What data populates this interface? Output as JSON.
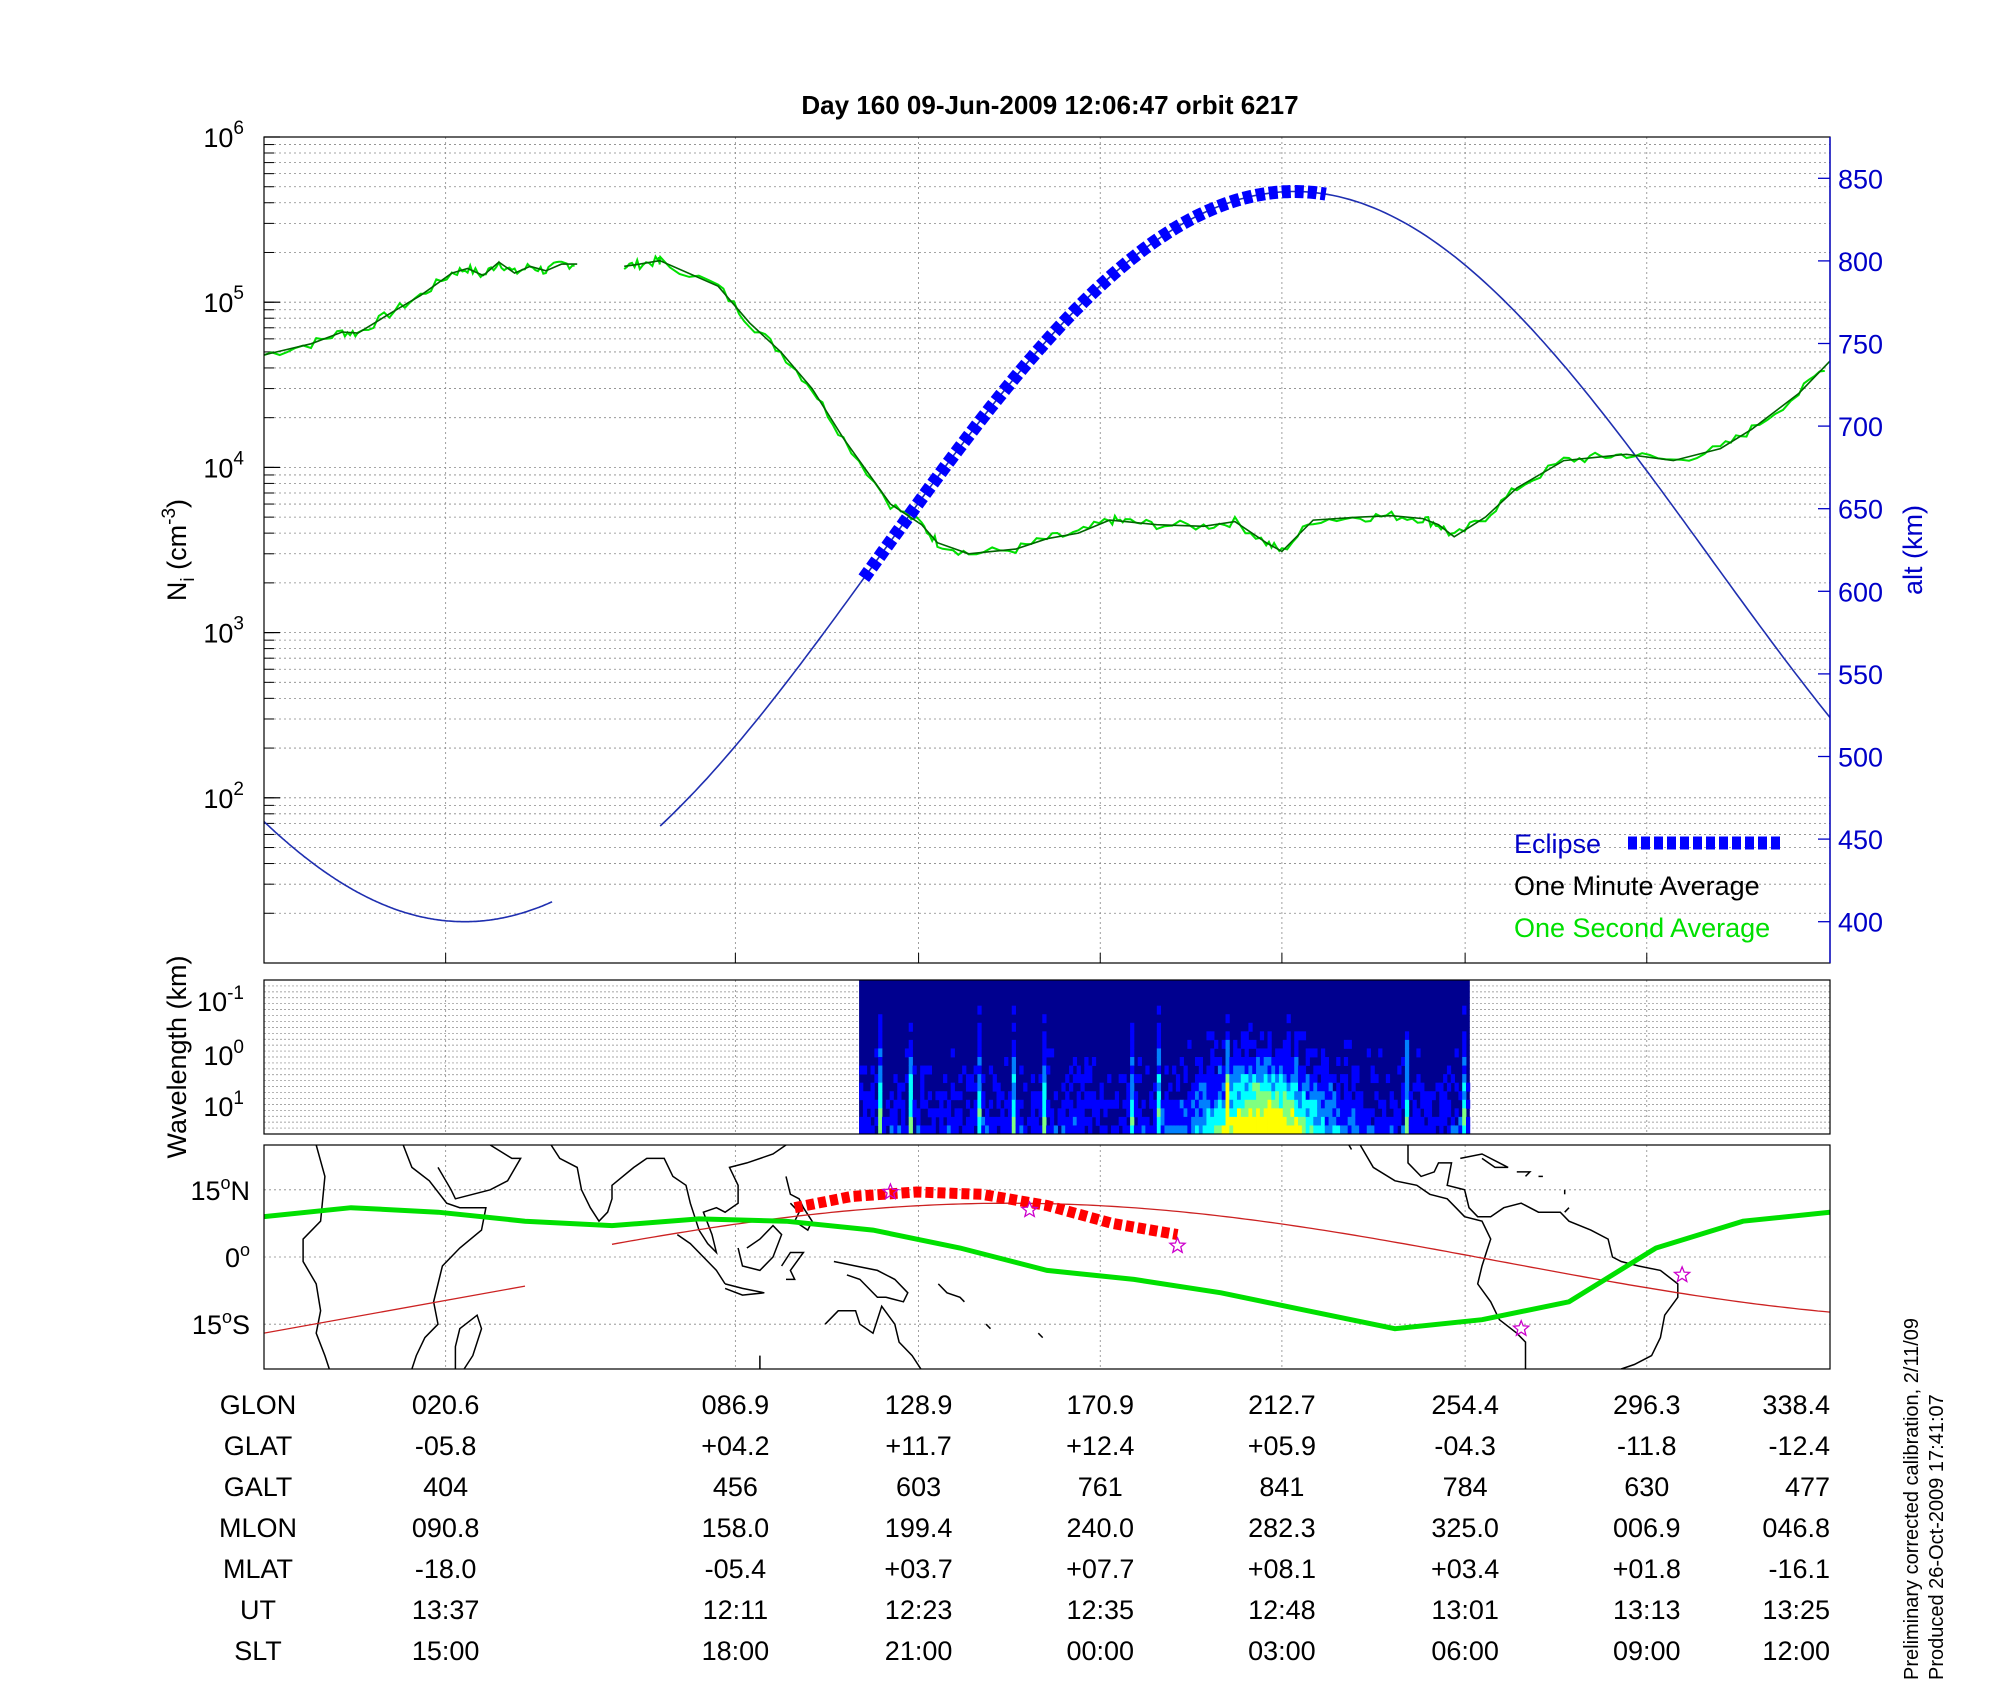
{
  "title": "Day 160  09-Jun-2009 12:06:47   orbit 6217",
  "chart_data": [
    {
      "type": "line",
      "panel": "density",
      "ylabel": "N_i (cm^-3)",
      "ylabel_main": "N",
      "ylabel_sub": "i",
      "ylabel_rest": " (cm",
      "ylabel_sup": "-3",
      "ylabel_close": ")",
      "yscale": "log",
      "ylim": [
        10,
        1000000
      ],
      "yticks": [
        {
          "base": "10",
          "exp": "2",
          "value": 100
        },
        {
          "base": "10",
          "exp": "3",
          "value": 1000
        },
        {
          "base": "10",
          "exp": "4",
          "value": 10000
        },
        {
          "base": "10",
          "exp": "5",
          "value": 100000
        },
        {
          "base": "10",
          "exp": "6",
          "value": 1000000
        }
      ],
      "y2label": "alt (km)",
      "y2lim": [
        375,
        875
      ],
      "y2ticks": [
        400,
        450,
        500,
        550,
        600,
        650,
        700,
        750,
        800,
        850
      ],
      "legend_position": "bottom-right",
      "series": [
        {
          "name": "Eclipse",
          "color": "#0000ff",
          "style": "thick-dashed",
          "x": [
            0.383,
            0.41,
            0.45,
            0.5,
            0.55,
            0.6,
            0.65,
            0.7,
            0.75,
            0.783
          ],
          "y": [
            552,
            597,
            660,
            732,
            783,
            818,
            838,
            842,
            840,
            838
          ]
        },
        {
          "name": "One Minute Average",
          "color": "#006400",
          "x": [
            0,
            0.03,
            0.05,
            0.06,
            0.08,
            0.1,
            0.12,
            0.13,
            0.14,
            0.15,
            0.16,
            0.17,
            0.18,
            0.19,
            0.2,
            0.21,
            0.22,
            0.23,
            0.24,
            0.252,
            0.253,
            0.29,
            0.31,
            0.33,
            0.35,
            0.37,
            0.4,
            0.42,
            0.43,
            0.45,
            0.48,
            0.5,
            0.52,
            0.54,
            0.55,
            0.57,
            0.6,
            0.62,
            0.64,
            0.65,
            0.67,
            0.7,
            0.72,
            0.74,
            0.75,
            0.76,
            0.78,
            0.8,
            0.83,
            0.85,
            0.87,
            0.9,
            0.93,
            0.95,
            0.98,
            1.0
          ],
          "y": [
            48000,
            56000,
            66000,
            65000,
            85000,
            110000,
            150000,
            160000,
            145000,
            175000,
            150000,
            165000,
            155000,
            170000,
            170000,
            null,
            null,
            165000,
            170000,
            178000,
            178000,
            125000,
            75000,
            50000,
            30000,
            15000,
            6000,
            4500,
            3500,
            3000,
            3200,
            3700,
            4000,
            4800,
            4700,
            4500,
            4400,
            4700,
            3500,
            3100,
            4800,
            5000,
            5100,
            4900,
            4500,
            3800,
            5000,
            7500,
            11000,
            11500,
            12000,
            11000,
            13000,
            17000,
            28000,
            44000
          ]
        },
        {
          "name": "One Second Average",
          "color": "#00e000"
        }
      ]
    },
    {
      "type": "heatmap",
      "panel": "spectrogram",
      "ylabel": "Wavelength (km)",
      "yticks": [
        {
          "base": "10",
          "exp": "-1"
        },
        {
          "base": "10",
          "exp": "0"
        },
        {
          "base": "10",
          "exp": "1"
        }
      ],
      "x_extent": [
        0.38,
        0.77
      ],
      "colormap": [
        "#00008f",
        "#0000ff",
        "#0080ff",
        "#00ffff",
        "#80ff80",
        "#ffff00"
      ]
    },
    {
      "type": "scatter",
      "panel": "map",
      "yticks": [
        "15°N",
        "0°",
        "15°S"
      ],
      "ytick_degree_labels": [
        {
          "num": "15",
          "deg": "o",
          "hem": "N"
        },
        {
          "num": "0",
          "deg": "o",
          "hem": ""
        },
        {
          "num": "15",
          "deg": "o",
          "hem": "S"
        }
      ],
      "xlim": [
        0,
        360
      ],
      "ylim": [
        -25,
        25
      ],
      "ground_track_color": "#cc0000",
      "magnetic_equator_color": "#00e000",
      "coast_color": "#000000"
    }
  ],
  "table": {
    "rows": [
      {
        "label": "GLON",
        "values": [
          "020.6",
          "086.9",
          "128.9",
          "170.9",
          "212.7",
          "254.4",
          "296.3",
          "338.4"
        ]
      },
      {
        "label": "GLAT",
        "values": [
          "-05.8",
          "+04.2",
          "+11.7",
          "+12.4",
          "+05.9",
          "-04.3",
          "-11.8",
          "-12.4"
        ]
      },
      {
        "label": "GALT",
        "values": [
          "404",
          "456",
          "603",
          "761",
          "841",
          "784",
          "630",
          "477"
        ]
      },
      {
        "label": "MLON",
        "values": [
          "090.8",
          "158.0",
          "199.4",
          "240.0",
          "282.3",
          "325.0",
          "006.9",
          "046.8"
        ]
      },
      {
        "label": "MLAT",
        "values": [
          "-18.0",
          "-05.4",
          "+03.7",
          "+07.7",
          "+08.1",
          "+03.4",
          "+01.8",
          "-16.1"
        ]
      },
      {
        "label": "UT",
        "values": [
          "13:37",
          "12:11",
          "12:23",
          "12:35",
          "12:48",
          "13:01",
          "13:13",
          "13:25"
        ]
      },
      {
        "label": "SLT",
        "values": [
          "15:00",
          "18:00",
          "21:00",
          "00:00",
          "03:00",
          "06:00",
          "09:00",
          "12:00"
        ]
      }
    ]
  },
  "footnote": {
    "line1": "Preliminary corrected calibration, 2/11/09",
    "line2": "Produced 26-Oct-2009 17:41:07"
  }
}
